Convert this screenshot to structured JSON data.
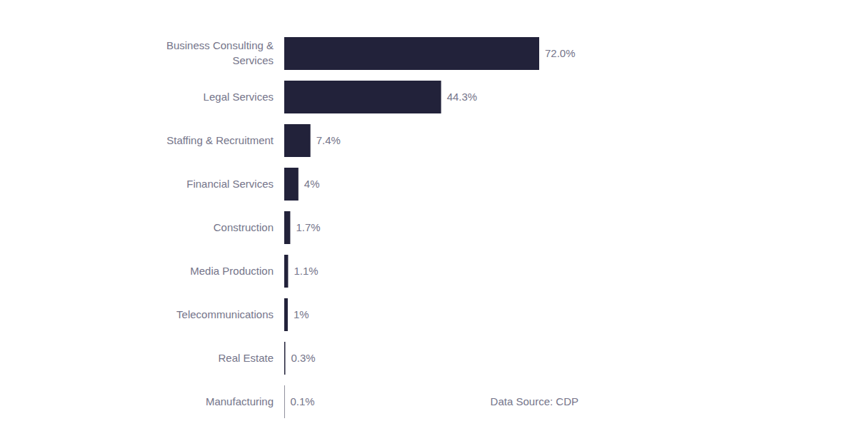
{
  "chart_data": {
    "type": "bar",
    "orientation": "horizontal",
    "categories": [
      "Business Consulting & Services",
      "Legal Services",
      "Staffing & Recruitment",
      "Financial Services",
      "Construction",
      "Media Production",
      "Telecommunications",
      "Real Estate",
      "Manufacturing"
    ],
    "values": [
      72.0,
      44.3,
      7.4,
      4,
      1.7,
      1.1,
      1,
      0.3,
      0.1
    ],
    "value_labels": [
      "72.0%",
      "44.3%",
      "7.4%",
      "4%",
      "1.7%",
      "1.1%",
      "1%",
      "0.3%",
      "0.1%"
    ],
    "data_labels": true,
    "color": "#22223a",
    "xlim": [
      0,
      72
    ],
    "tick_labels": false,
    "grid": false,
    "annotations": [
      "Data Source: CDP"
    ]
  }
}
